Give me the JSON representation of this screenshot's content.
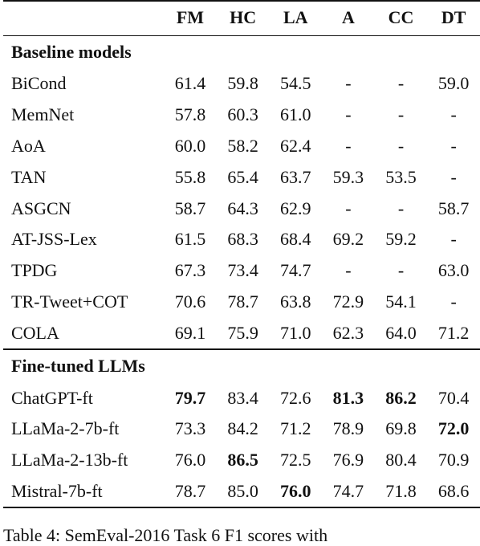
{
  "table": {
    "columns": [
      "FM",
      "HC",
      "LA",
      "A",
      "CC",
      "DT"
    ],
    "sections": [
      {
        "title": "Baseline models",
        "rows": [
          {
            "model": "BiCond",
            "values": [
              "61.4",
              "59.8",
              "54.5",
              "-",
              "-",
              "59.0"
            ],
            "bold": []
          },
          {
            "model": "MemNet",
            "values": [
              "57.8",
              "60.3",
              "61.0",
              "-",
              "-",
              "-"
            ],
            "bold": []
          },
          {
            "model": "AoA",
            "values": [
              "60.0",
              "58.2",
              "62.4",
              "-",
              "-",
              "-"
            ],
            "bold": []
          },
          {
            "model": "TAN",
            "values": [
              "55.8",
              "65.4",
              "63.7",
              "59.3",
              "53.5",
              "-"
            ],
            "bold": []
          },
          {
            "model": "ASGCN",
            "values": [
              "58.7",
              "64.3",
              "62.9",
              "-",
              "-",
              "58.7"
            ],
            "bold": []
          },
          {
            "model": "AT-JSS-Lex",
            "values": [
              "61.5",
              "68.3",
              "68.4",
              "69.2",
              "59.2",
              "-"
            ],
            "bold": []
          },
          {
            "model": "TPDG",
            "values": [
              "67.3",
              "73.4",
              "74.7",
              "-",
              "-",
              "63.0"
            ],
            "bold": []
          },
          {
            "model": "TR-Tweet+COT",
            "values": [
              "70.6",
              "78.7",
              "63.8",
              "72.9",
              "54.1",
              "-"
            ],
            "bold": []
          },
          {
            "model": "COLA",
            "values": [
              "69.1",
              "75.9",
              "71.0",
              "62.3",
              "64.0",
              "71.2"
            ],
            "bold": []
          }
        ]
      },
      {
        "title": "Fine-tuned LLMs",
        "rows": [
          {
            "model": "ChatGPT-ft",
            "values": [
              "79.7",
              "83.4",
              "72.6",
              "81.3",
              "86.2",
              "70.4"
            ],
            "bold": [
              0,
              3,
              4
            ]
          },
          {
            "model": "LLaMa-2-7b-ft",
            "values": [
              "73.3",
              "84.2",
              "71.2",
              "78.9",
              "69.8",
              "72.0"
            ],
            "bold": [
              5
            ]
          },
          {
            "model": "LLaMa-2-13b-ft",
            "values": [
              "76.0",
              "86.5",
              "72.5",
              "76.9",
              "80.4",
              "70.9"
            ],
            "bold": [
              1
            ]
          },
          {
            "model": "Mistral-7b-ft",
            "values": [
              "78.7",
              "85.0",
              "76.0",
              "74.7",
              "71.8",
              "68.6"
            ],
            "bold": [
              2
            ]
          }
        ]
      }
    ]
  },
  "caption": "Table 4: SemEval-2016 Task 6 F1 scores with"
}
